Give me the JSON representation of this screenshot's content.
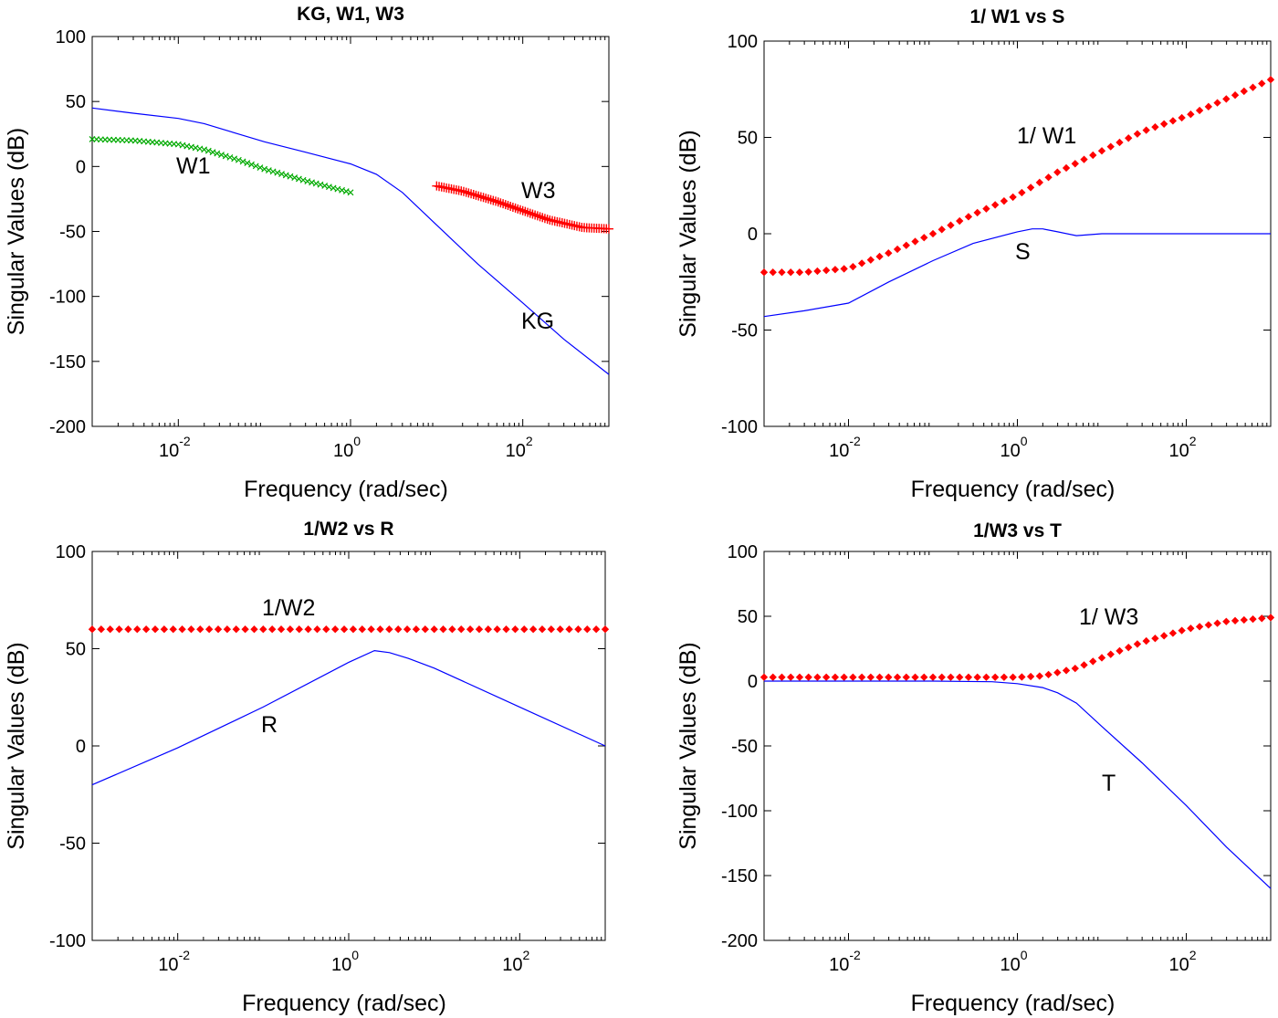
{
  "chart_data": [
    {
      "type": "line",
      "title": "KG, W1, W3",
      "xlabel": "Frequency (rad/sec)",
      "ylabel": "Singular Values (dB)",
      "xscale": "log",
      "xlim": [
        0.001,
        1000
      ],
      "ylim": [
        -200,
        100
      ],
      "xticks": [
        {
          "base": "10",
          "exp": "-2",
          "value": 0.01
        },
        {
          "base": "10",
          "exp": "0",
          "value": 1
        },
        {
          "base": "10",
          "exp": "2",
          "value": 100
        }
      ],
      "yticks": [
        -200,
        -150,
        -100,
        -50,
        0,
        50,
        100
      ],
      "series": [
        {
          "name": "KG",
          "color": "#0000ff",
          "marker": "none",
          "x": [
            0.001,
            0.003,
            0.01,
            0.02,
            0.05,
            0.1,
            0.3,
            1,
            2,
            4,
            10,
            30,
            100,
            300,
            1000
          ],
          "y": [
            45,
            41,
            37,
            33,
            25,
            19,
            11,
            2,
            -6,
            -20,
            -45,
            -75,
            -105,
            -133,
            -160
          ]
        },
        {
          "name": "W1",
          "color": "#00aa00",
          "marker": "x",
          "x": [
            0.001,
            0.003,
            0.01,
            0.02,
            0.05,
            0.1,
            0.3,
            1
          ],
          "y": [
            21,
            20,
            17,
            13,
            5,
            -2,
            -11,
            -20
          ]
        },
        {
          "name": "W3",
          "color": "#ff0000",
          "marker": "+",
          "x": [
            10,
            20,
            50,
            100,
            200,
            500,
            1000
          ],
          "y": [
            -15,
            -19,
            -27,
            -34,
            -41,
            -47,
            -48
          ]
        }
      ],
      "annotations": [
        {
          "text": "W1"
        },
        {
          "text": "W3"
        },
        {
          "text": "KG"
        }
      ]
    },
    {
      "type": "line",
      "title": "1/ W1 vs S",
      "xlabel": "Frequency (rad/sec)",
      "ylabel": "Singular Values (dB)",
      "xscale": "log",
      "xlim": [
        0.001,
        1000
      ],
      "ylim": [
        -100,
        100
      ],
      "xticks": [
        {
          "base": "10",
          "exp": "-2",
          "value": 0.01
        },
        {
          "base": "10",
          "exp": "0",
          "value": 1
        },
        {
          "base": "10",
          "exp": "2",
          "value": 100
        }
      ],
      "yticks": [
        -100,
        -50,
        0,
        50,
        100
      ],
      "series": [
        {
          "name": "1/ W1",
          "color": "#ff0000",
          "marker": "diamond",
          "x": [
            0.001,
            0.003,
            0.01,
            0.03,
            0.1,
            0.3,
            1,
            3,
            10,
            30,
            100,
            300,
            1000
          ],
          "y": [
            -20,
            -20,
            -18,
            -10,
            0,
            10,
            20,
            32,
            43,
            53,
            61,
            70,
            80
          ]
        },
        {
          "name": "S",
          "color": "#0000ff",
          "marker": "none",
          "x": [
            0.001,
            0.003,
            0.01,
            0.03,
            0.1,
            0.3,
            1,
            1.5,
            2,
            3,
            5,
            10,
            1000
          ],
          "y": [
            -43,
            -40,
            -36,
            -25,
            -14,
            -5,
            1,
            2.5,
            2.5,
            1,
            -1,
            0,
            0
          ]
        }
      ],
      "annotations": [
        {
          "text": "1/ W1"
        },
        {
          "text": "S"
        }
      ]
    },
    {
      "type": "line",
      "title": "1/W2 vs R",
      "xlabel": "Frequency (rad/sec)",
      "ylabel": "Singular Values (dB)",
      "xscale": "log",
      "xlim": [
        0.001,
        1000
      ],
      "ylim": [
        -100,
        100
      ],
      "xticks": [
        {
          "base": "10",
          "exp": "-2",
          "value": 0.01
        },
        {
          "base": "10",
          "exp": "0",
          "value": 1
        },
        {
          "base": "10",
          "exp": "2",
          "value": 100
        }
      ],
      "yticks": [
        -100,
        -50,
        0,
        50,
        100
      ],
      "series": [
        {
          "name": "1/W2",
          "color": "#ff0000",
          "marker": "diamond",
          "x": [
            0.001,
            1000
          ],
          "y": [
            60,
            60
          ]
        },
        {
          "name": "R",
          "color": "#0000ff",
          "marker": "none",
          "x": [
            0.001,
            0.01,
            0.1,
            1,
            2,
            3,
            5,
            10,
            100,
            1000
          ],
          "y": [
            -20,
            -1,
            20,
            43,
            49,
            48,
            45,
            40,
            20,
            0
          ]
        }
      ],
      "annotations": [
        {
          "text": "1/W2"
        },
        {
          "text": "R"
        }
      ]
    },
    {
      "type": "line",
      "title": "1/W3 vs T",
      "xlabel": "Frequency (rad/sec)",
      "ylabel": "Singular Values (dB)",
      "xscale": "log",
      "xlim": [
        0.001,
        1000
      ],
      "ylim": [
        -200,
        100
      ],
      "xticks": [
        {
          "base": "10",
          "exp": "-2",
          "value": 0.01
        },
        {
          "base": "10",
          "exp": "0",
          "value": 1
        },
        {
          "base": "10",
          "exp": "2",
          "value": 100
        }
      ],
      "yticks": [
        -200,
        -150,
        -100,
        -50,
        0,
        50,
        100
      ],
      "series": [
        {
          "name": "1/ W3",
          "color": "#ff0000",
          "marker": "diamond",
          "x": [
            0.001,
            0.01,
            0.1,
            1,
            2,
            5,
            10,
            30,
            100,
            300,
            1000
          ],
          "y": [
            3,
            3,
            3,
            3,
            4,
            10,
            18,
            30,
            40,
            46,
            49
          ]
        },
        {
          "name": "T",
          "color": "#0000ff",
          "marker": "none",
          "x": [
            0.001,
            0.01,
            0.1,
            0.5,
            1,
            2,
            3,
            5,
            10,
            30,
            100,
            300,
            1000
          ],
          "y": [
            0,
            0,
            0,
            -0.5,
            -2,
            -5,
            -9,
            -17,
            -35,
            -63,
            -96,
            -128,
            -160
          ]
        }
      ],
      "annotations": [
        {
          "text": "1/ W3"
        },
        {
          "text": "T"
        }
      ]
    }
  ]
}
